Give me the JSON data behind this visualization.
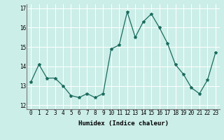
{
  "x": [
    0,
    1,
    2,
    3,
    4,
    5,
    6,
    7,
    8,
    9,
    10,
    11,
    12,
    13,
    14,
    15,
    16,
    17,
    18,
    19,
    20,
    21,
    22,
    23
  ],
  "y": [
    13.2,
    14.1,
    13.4,
    13.4,
    13.0,
    12.5,
    12.4,
    12.6,
    12.4,
    12.6,
    14.9,
    15.1,
    16.8,
    15.5,
    16.3,
    16.7,
    16.0,
    15.2,
    14.1,
    13.6,
    12.9,
    12.6,
    13.3,
    14.7
  ],
  "line_color": "#1a6b5e",
  "marker": "*",
  "marker_size": 3,
  "bg_color": "#cceee8",
  "grid_color": "#ffffff",
  "xlabel": "Humidex (Indice chaleur)",
  "ylim": [
    11.8,
    17.2
  ],
  "xlim": [
    -0.5,
    23.5
  ],
  "yticks": [
    12,
    13,
    14,
    15,
    16,
    17
  ],
  "xticks": [
    0,
    1,
    2,
    3,
    4,
    5,
    6,
    7,
    8,
    9,
    10,
    11,
    12,
    13,
    14,
    15,
    16,
    17,
    18,
    19,
    20,
    21,
    22,
    23
  ],
  "xlabel_fontsize": 6.5,
  "tick_fontsize": 5.5
}
